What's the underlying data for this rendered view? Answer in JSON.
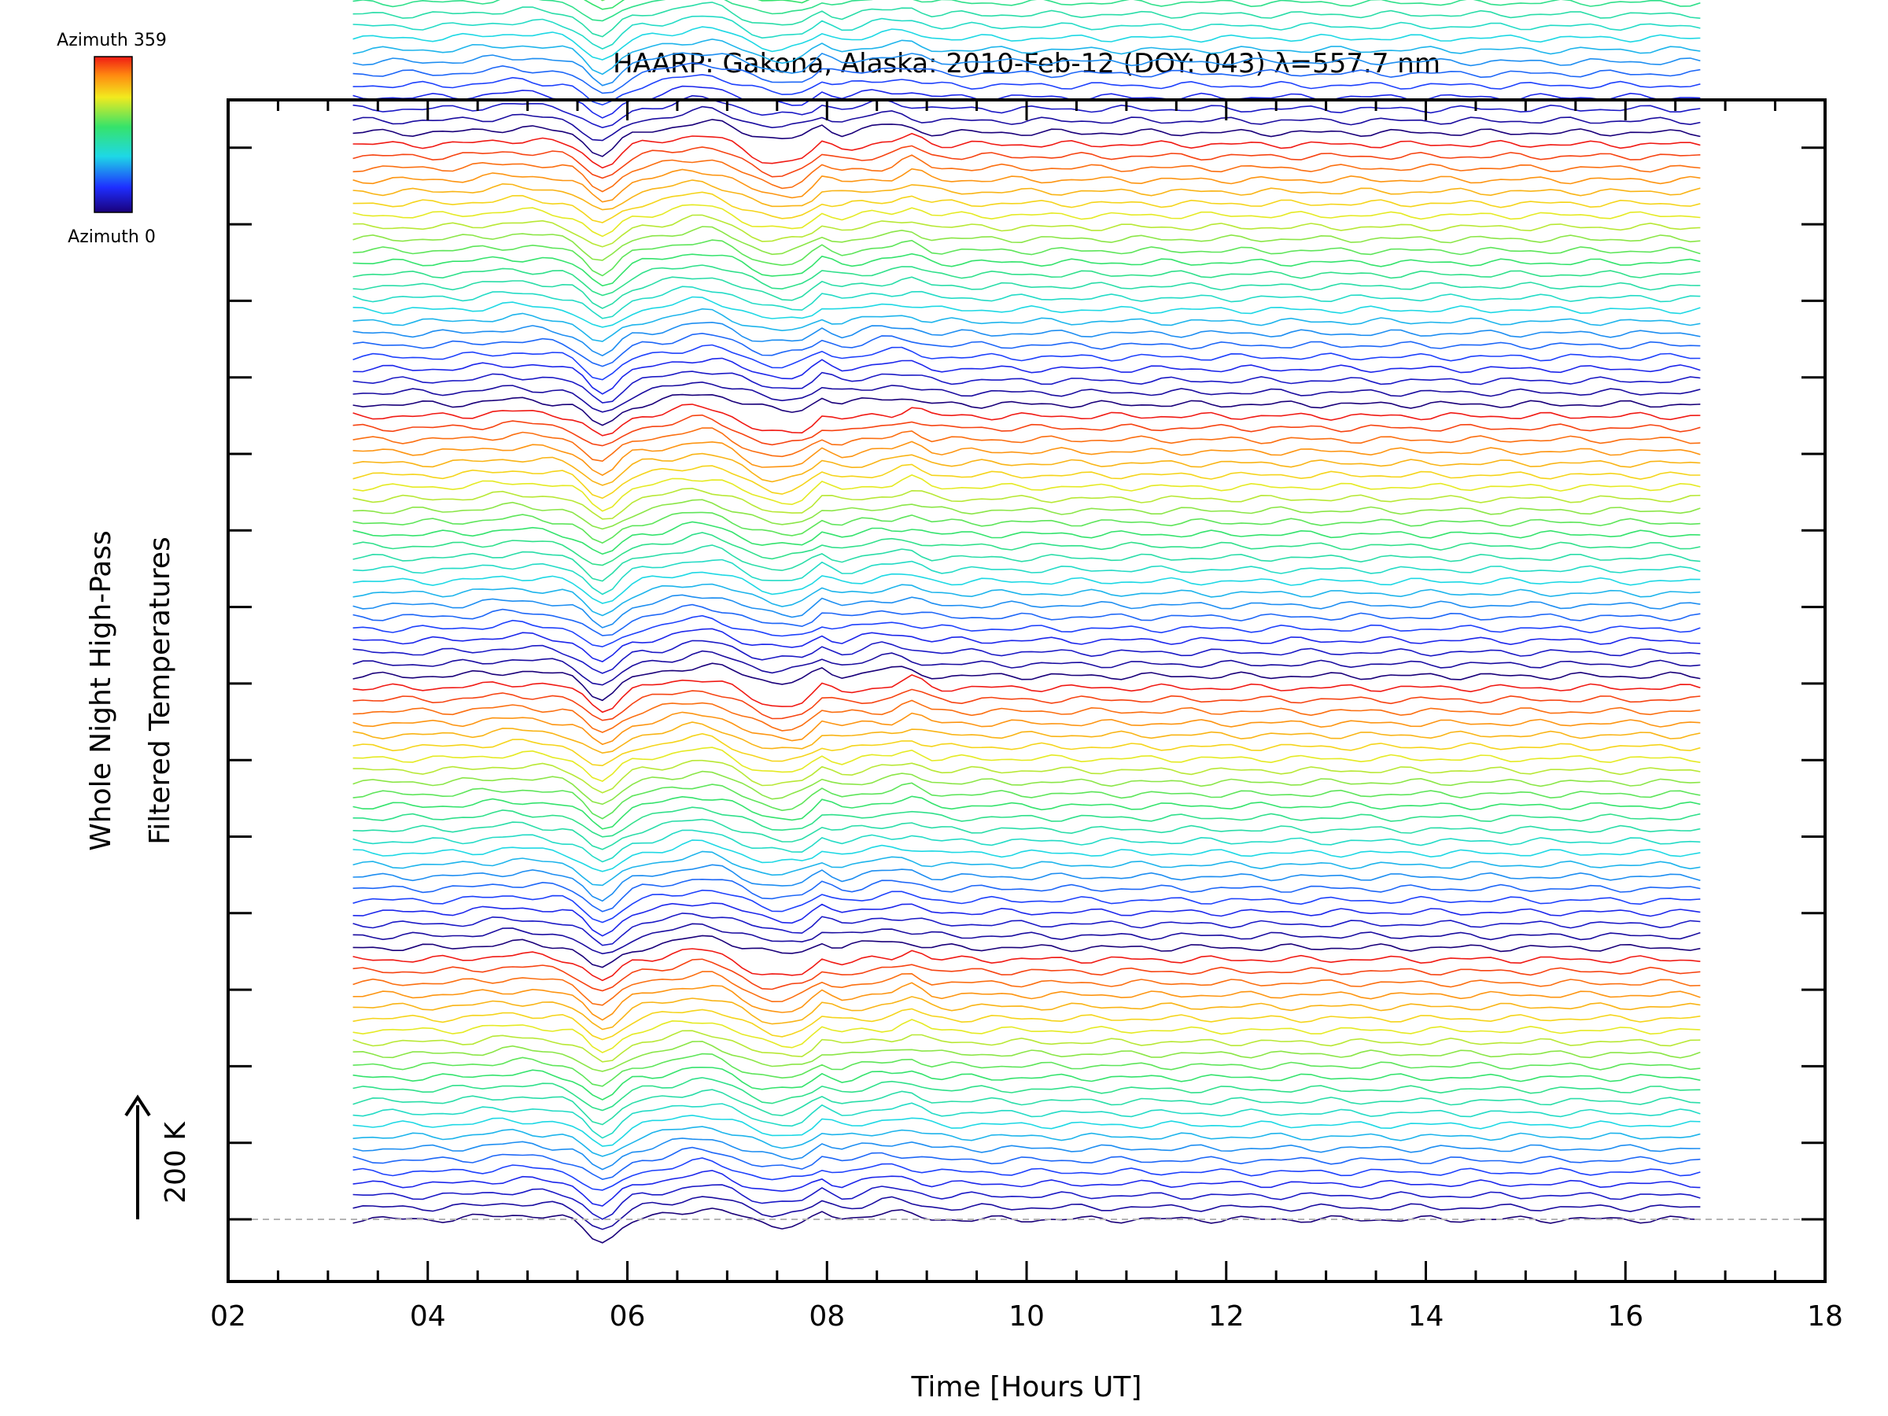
{
  "chart_data": {
    "type": "line",
    "title": "HAARP: Gakona,  Alaska: 2010-Feb-12 (DOY: 043) λ=557.7 nm",
    "xlabel": "Time [Hours UT]",
    "ylabel_line1": "Whole Night High-Pass",
    "ylabel_line2": "Filtered Temperatures",
    "xlim": [
      2,
      18
    ],
    "x_tick_labels": [
      "02",
      "04",
      "06",
      "08",
      "10",
      "12",
      "14",
      "16",
      "18"
    ],
    "x_major_ticks": [
      2,
      4,
      6,
      8,
      10,
      12,
      14,
      16,
      18
    ],
    "x_minor_step": 0.5,
    "time_range": [
      3.25,
      16.75
    ],
    "scale_bar_label": "200 K",
    "scale_bar_kelvin": 200,
    "colorbar": {
      "top_label": "Azimuth 359",
      "bottom_label": "Azimuth 0",
      "azimuth_range": [
        0,
        359
      ]
    },
    "series_count": 140,
    "azimuth_cycle_length": 23,
    "trace_offset_kelvin": 21,
    "grid": false,
    "zero_baseline": "dashed"
  },
  "colors": {
    "axis": "#000000",
    "background": "#ffffff",
    "baseline": "#b4b4b4"
  }
}
